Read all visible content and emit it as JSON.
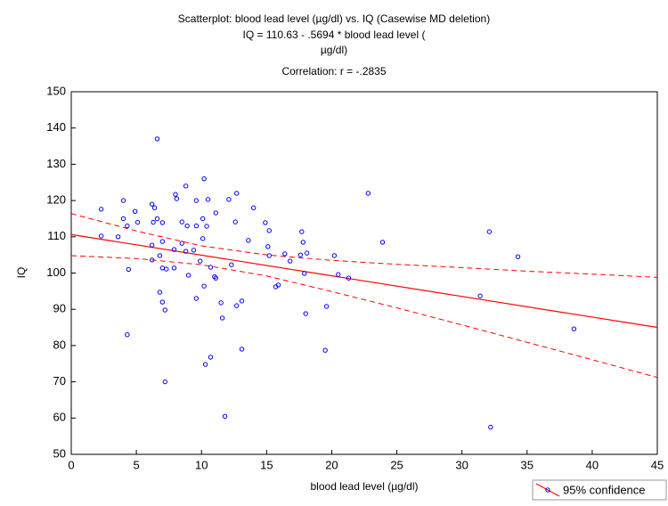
{
  "chart_data": {
    "type": "scatter",
    "title": [
      "Scatterplot: blood lead level (µg/dl) vs. IQ (Casewise MD deletion)",
      "IQ = 110.63 - .5694  * blood lead level (",
      "µg/dl)",
      "Correlation: r = -.2835"
    ],
    "x_label": "blood lead level (µg/dl)",
    "y_label": "IQ",
    "xlim": [
      0,
      45
    ],
    "xticks": [
      0,
      5,
      10,
      15,
      20,
      25,
      30,
      35,
      40,
      45
    ],
    "ylim": [
      50,
      150
    ],
    "yticks": [
      50,
      60,
      70,
      80,
      90,
      100,
      110,
      120,
      130,
      140,
      150
    ],
    "grid": false,
    "legend": "bottom-right",
    "series": [
      {
        "name": "95% confidence",
        "color": "#0000ff",
        "x": [
          2.3,
          2.3,
          3.6,
          4.0,
          4.0,
          4.3,
          4.4,
          4.3,
          4.9,
          5.1,
          6.2,
          6.4,
          6.3,
          6.2,
          6.2,
          6.6,
          6.6,
          6.8,
          6.8,
          7.0,
          7.0,
          7.2,
          7.2,
          7.0,
          7.0,
          7.3,
          7.9,
          7.9,
          8.0,
          8.1,
          8.5,
          8.5,
          8.8,
          8.8,
          8.9,
          9.0,
          9.6,
          9.4,
          9.6,
          9.6,
          9.9,
          10.1,
          10.1,
          10.2,
          10.2,
          10.3,
          10.4,
          10.5,
          10.7,
          10.7,
          11.0,
          11.1,
          11.1,
          11.5,
          11.6,
          11.8,
          12.1,
          12.3,
          12.6,
          12.7,
          12.7,
          13.1,
          13.1,
          13.6,
          14.0,
          14.9,
          15.1,
          15.2,
          15.2,
          15.7,
          15.9,
          16.4,
          16.8,
          17.6,
          17.7,
          17.8,
          17.9,
          18.0,
          18.1,
          19.5,
          19.6,
          20.2,
          20.5,
          21.3,
          22.8,
          23.9,
          31.4,
          32.1,
          32.2,
          34.3,
          38.6
        ],
        "y": [
          117.6,
          110.2,
          110,
          120,
          115,
          113,
          101,
          83,
          117,
          114,
          119,
          118,
          114,
          107.7,
          103.6,
          137,
          115,
          104.8,
          94.7,
          101.4,
          92,
          89.8,
          70,
          113.9,
          108.7,
          101.1,
          106.5,
          101.4,
          121.7,
          120.5,
          114.1,
          108.2,
          106,
          124,
          113,
          99.4,
          113,
          106.3,
          93,
          120,
          103.3,
          109.5,
          115,
          126,
          96.4,
          74.8,
          112.9,
          120.3,
          76.8,
          101.6,
          99,
          116.6,
          98.6,
          91.8,
          87.6,
          60.5,
          120.3,
          102.3,
          114.1,
          122,
          91,
          92.3,
          79,
          109,
          118,
          113.9,
          107.3,
          111.7,
          104.8,
          96.2,
          96.7,
          105.3,
          103.3,
          105,
          111.4,
          108.5,
          99.9,
          88.8,
          105.5,
          78.7,
          90.8,
          104.8,
          99.6,
          98.6,
          122,
          108.5,
          93.7,
          111.4,
          57.5,
          104.5,
          84.6
        ]
      }
    ],
    "fit": {
      "intercept": 110.63,
      "slope": -0.5694,
      "color": "#ff0000"
    },
    "band": {
      "x": [
        0,
        5,
        10,
        15,
        20,
        25,
        30,
        35,
        40,
        45
      ],
      "upper": [
        116.4,
        111.6,
        107.5,
        105.0,
        103.5,
        102.4,
        101.5,
        100.5,
        99.7,
        98.8
      ],
      "lower": [
        104.8,
        104.0,
        102.3,
        99.2,
        94.9,
        90.4,
        85.7,
        80.9,
        76.1,
        71.2
      ]
    }
  }
}
